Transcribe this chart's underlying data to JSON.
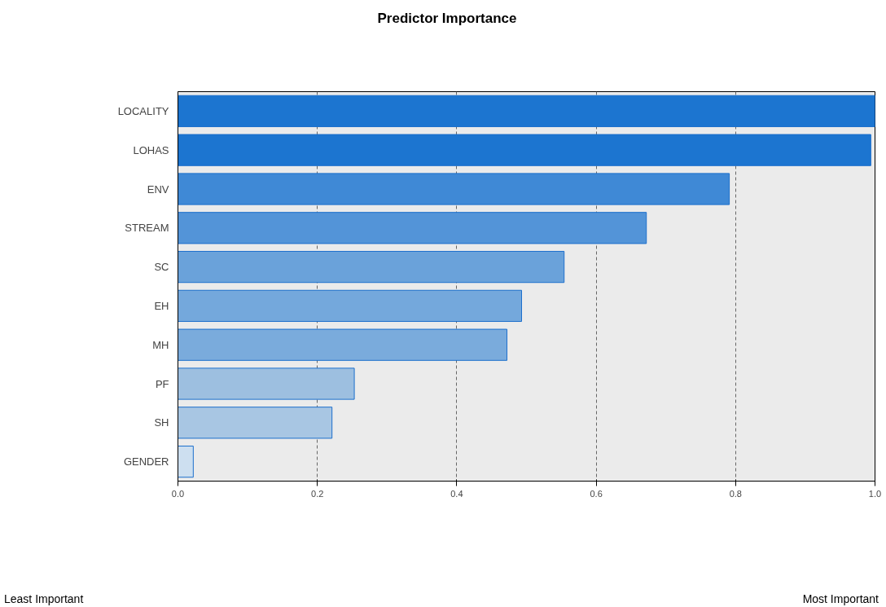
{
  "chart_data": {
    "type": "bar",
    "orientation": "horizontal",
    "title": "Predictor Importance",
    "categories": [
      "LOCALITY",
      "LOHAS",
      "ENV",
      "STREAM",
      "SC",
      "EH",
      "MH",
      "PF",
      "SH",
      "GENDER"
    ],
    "values": [
      1.0,
      0.994,
      0.791,
      0.672,
      0.554,
      0.493,
      0.472,
      0.253,
      0.221,
      0.022
    ],
    "colors": [
      "#1c75d0",
      "#1c75d0",
      "#3f89d6",
      "#5394d8",
      "#6aa2da",
      "#74a8dc",
      "#7aabdc",
      "#9dbfe0",
      "#a8c6e3",
      "#cddff0"
    ],
    "xlim": [
      0,
      1.0
    ],
    "xticks": [
      {
        "value": 0,
        "label": "0.0"
      },
      0.2,
      0.4,
      0.6,
      0.8,
      {
        "value": 1,
        "label": "1.0"
      }
    ],
    "grid": "x",
    "annotations": [
      "Least Important",
      "Most Important"
    ]
  }
}
